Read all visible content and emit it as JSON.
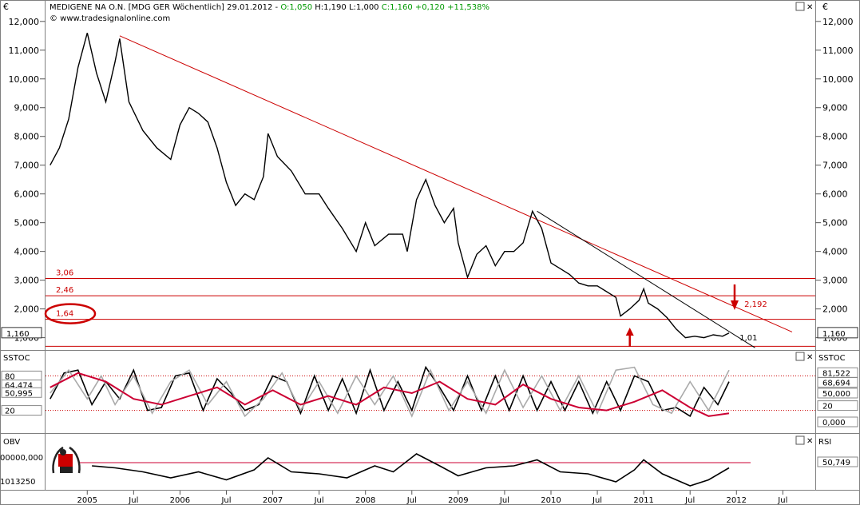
{
  "header": {
    "currency": "€",
    "instrument": "MEDIGENE NA O.N. [MDG GER  Wöchentlich] 29.01.2012 -",
    "ohlc": {
      "open": "O:1,050",
      "high": "H:1,190",
      "low": "L:1,000",
      "close": "C:1,160 +0,120 +11,538%"
    },
    "copyright": "© www.tradesignalonline.com",
    "window_controls": [
      "▢",
      "✕"
    ]
  },
  "chart_data": [
    {
      "type": "line",
      "panel": "price",
      "y_ticks": [
        "1,000",
        "2,000",
        "3,000",
        "4,000",
        "5,000",
        "6,000",
        "7,000",
        "8,000",
        "9,000",
        "10,000",
        "11,000",
        "12,000"
      ],
      "ylim": [
        0.6,
        12.3
      ],
      "x_ticks": [
        "2005",
        "Jul",
        "2006",
        "Jul",
        "2007",
        "Jul",
        "2008",
        "Jul",
        "2009",
        "Jul",
        "2010",
        "Jul",
        "2011",
        "Jul",
        "2012",
        "Jul"
      ],
      "last_price_label": "1,160",
      "series": [
        {
          "values": [
            [
              2004.6,
              7.0
            ],
            [
              2004.7,
              7.6
            ],
            [
              2004.8,
              8.6
            ],
            [
              2004.9,
              10.4
            ],
            [
              2005.0,
              11.6
            ],
            [
              2005.1,
              10.2
            ],
            [
              2005.2,
              9.2
            ],
            [
              2005.3,
              10.6
            ],
            [
              2005.35,
              11.4
            ],
            [
              2005.45,
              9.2
            ],
            [
              2005.6,
              8.2
            ],
            [
              2005.75,
              7.6
            ],
            [
              2005.9,
              7.2
            ],
            [
              2006.0,
              8.4
            ],
            [
              2006.1,
              9.0
            ],
            [
              2006.2,
              8.8
            ],
            [
              2006.3,
              8.5
            ],
            [
              2006.4,
              7.6
            ],
            [
              2006.5,
              6.4
            ],
            [
              2006.6,
              5.6
            ],
            [
              2006.7,
              6.0
            ],
            [
              2006.8,
              5.8
            ],
            [
              2006.9,
              6.6
            ],
            [
              2006.95,
              8.1
            ],
            [
              2007.05,
              7.3
            ],
            [
              2007.2,
              6.8
            ],
            [
              2007.35,
              6.0
            ],
            [
              2007.5,
              6.0
            ],
            [
              2007.6,
              5.5
            ],
            [
              2007.75,
              4.8
            ],
            [
              2007.9,
              4.0
            ],
            [
              2008.0,
              5.0
            ],
            [
              2008.1,
              4.2
            ],
            [
              2008.25,
              4.6
            ],
            [
              2008.4,
              4.6
            ],
            [
              2008.45,
              4.0
            ],
            [
              2008.55,
              5.8
            ],
            [
              2008.65,
              6.5
            ],
            [
              2008.75,
              5.6
            ],
            [
              2008.85,
              5.0
            ],
            [
              2008.95,
              5.5
            ],
            [
              2009.0,
              4.3
            ],
            [
              2009.1,
              3.1
            ],
            [
              2009.2,
              3.9
            ],
            [
              2009.3,
              4.2
            ],
            [
              2009.4,
              3.5
            ],
            [
              2009.5,
              4.0
            ],
            [
              2009.6,
              4.0
            ],
            [
              2009.7,
              4.3
            ],
            [
              2009.8,
              5.4
            ],
            [
              2009.9,
              4.8
            ],
            [
              2010.0,
              3.6
            ],
            [
              2010.1,
              3.4
            ],
            [
              2010.2,
              3.2
            ],
            [
              2010.3,
              2.9
            ],
            [
              2010.4,
              2.8
            ],
            [
              2010.5,
              2.8
            ],
            [
              2010.6,
              2.6
            ],
            [
              2010.7,
              2.4
            ],
            [
              2010.75,
              1.75
            ],
            [
              2010.85,
              2.0
            ],
            [
              2010.95,
              2.3
            ],
            [
              2011.0,
              2.7
            ],
            [
              2011.05,
              2.2
            ],
            [
              2011.15,
              2.0
            ],
            [
              2011.25,
              1.7
            ],
            [
              2011.35,
              1.3
            ],
            [
              2011.45,
              1.0
            ],
            [
              2011.55,
              1.05
            ],
            [
              2011.65,
              1.0
            ],
            [
              2011.75,
              1.1
            ],
            [
              2011.85,
              1.05
            ],
            [
              2011.92,
              1.16
            ]
          ]
        }
      ],
      "trendlines": [
        {
          "color": "#cc0000",
          "from": [
            2005.35,
            11.5
          ],
          "to": [
            2012.6,
            1.2
          ]
        },
        {
          "color": "#000000",
          "from": [
            2009.85,
            5.4
          ],
          "to": [
            2012.2,
            0.65
          ]
        }
      ],
      "horizontal_levels": [
        {
          "value": 3.06,
          "label": "3,06"
        },
        {
          "value": 2.46,
          "label": "2,46"
        },
        {
          "value": 1.64,
          "label": "1,64"
        },
        {
          "value": 0.7,
          "label": ""
        }
      ],
      "annotations": [
        {
          "text": "2,192",
          "at": [
            2012.05,
            2.19
          ]
        },
        {
          "text": "1,01",
          "at": [
            2012.0,
            1.01
          ]
        }
      ],
      "arrows": [
        {
          "direction": "up",
          "x": 2010.85
        },
        {
          "direction": "down",
          "x": 2011.98
        }
      ]
    },
    {
      "type": "line",
      "panel": "sstoc",
      "title": "SSTOC",
      "ylim": [
        0,
        100
      ],
      "left_labels": [
        "80",
        "64,474",
        "50,995",
        "20"
      ],
      "right_labels": [
        "81,522",
        "68,694",
        "50,000",
        "20",
        "0,000"
      ],
      "levels": [
        80,
        20
      ],
      "series": [
        {
          "color": "#000000",
          "values": [
            [
              2004.6,
              40
            ],
            [
              2004.75,
              85
            ],
            [
              2004.9,
              90
            ],
            [
              2005.05,
              30
            ],
            [
              2005.2,
              70
            ],
            [
              2005.35,
              40
            ],
            [
              2005.5,
              90
            ],
            [
              2005.65,
              20
            ],
            [
              2005.8,
              25
            ],
            [
              2005.95,
              80
            ],
            [
              2006.1,
              85
            ],
            [
              2006.25,
              20
            ],
            [
              2006.4,
              75
            ],
            [
              2006.55,
              50
            ],
            [
              2006.7,
              20
            ],
            [
              2006.85,
              30
            ],
            [
              2007.0,
              80
            ],
            [
              2007.15,
              70
            ],
            [
              2007.3,
              15
            ],
            [
              2007.45,
              80
            ],
            [
              2007.6,
              20
            ],
            [
              2007.75,
              75
            ],
            [
              2007.9,
              15
            ],
            [
              2008.05,
              90
            ],
            [
              2008.2,
              20
            ],
            [
              2008.35,
              70
            ],
            [
              2008.5,
              20
            ],
            [
              2008.65,
              95
            ],
            [
              2008.8,
              60
            ],
            [
              2008.95,
              20
            ],
            [
              2009.1,
              80
            ],
            [
              2009.25,
              20
            ],
            [
              2009.4,
              80
            ],
            [
              2009.55,
              20
            ],
            [
              2009.7,
              80
            ],
            [
              2009.85,
              20
            ],
            [
              2010.0,
              70
            ],
            [
              2010.15,
              20
            ],
            [
              2010.3,
              70
            ],
            [
              2010.45,
              15
            ],
            [
              2010.6,
              70
            ],
            [
              2010.75,
              20
            ],
            [
              2010.9,
              80
            ],
            [
              2011.05,
              70
            ],
            [
              2011.2,
              20
            ],
            [
              2011.35,
              25
            ],
            [
              2011.5,
              10
            ],
            [
              2011.65,
              60
            ],
            [
              2011.8,
              30
            ],
            [
              2011.92,
              70
            ]
          ]
        },
        {
          "color": "#aaaaaa",
          "values": [
            [
              2004.6,
              50
            ],
            [
              2004.8,
              90
            ],
            [
              2005.0,
              40
            ],
            [
              2005.15,
              80
            ],
            [
              2005.3,
              30
            ],
            [
              2005.5,
              80
            ],
            [
              2005.7,
              15
            ],
            [
              2005.9,
              70
            ],
            [
              2006.1,
              90
            ],
            [
              2006.3,
              30
            ],
            [
              2006.5,
              70
            ],
            [
              2006.7,
              10
            ],
            [
              2006.9,
              40
            ],
            [
              2007.1,
              85
            ],
            [
              2007.3,
              20
            ],
            [
              2007.5,
              70
            ],
            [
              2007.7,
              15
            ],
            [
              2007.9,
              80
            ],
            [
              2008.1,
              30
            ],
            [
              2008.3,
              80
            ],
            [
              2008.5,
              10
            ],
            [
              2008.7,
              90
            ],
            [
              2008.9,
              20
            ],
            [
              2009.1,
              70
            ],
            [
              2009.3,
              15
            ],
            [
              2009.5,
              90
            ],
            [
              2009.7,
              25
            ],
            [
              2009.9,
              80
            ],
            [
              2010.1,
              20
            ],
            [
              2010.3,
              80
            ],
            [
              2010.5,
              15
            ],
            [
              2010.7,
              90
            ],
            [
              2010.9,
              95
            ],
            [
              2011.1,
              30
            ],
            [
              2011.3,
              15
            ],
            [
              2011.5,
              70
            ],
            [
              2011.7,
              20
            ],
            [
              2011.92,
              90
            ]
          ]
        },
        {
          "color": "#cc0033",
          "values": [
            [
              2004.6,
              60
            ],
            [
              2004.9,
              85
            ],
            [
              2005.2,
              70
            ],
            [
              2005.5,
              40
            ],
            [
              2005.8,
              30
            ],
            [
              2006.1,
              45
            ],
            [
              2006.4,
              60
            ],
            [
              2006.7,
              30
            ],
            [
              2007.0,
              55
            ],
            [
              2007.3,
              30
            ],
            [
              2007.6,
              45
            ],
            [
              2007.9,
              30
            ],
            [
              2008.2,
              60
            ],
            [
              2008.5,
              50
            ],
            [
              2008.8,
              70
            ],
            [
              2009.1,
              40
            ],
            [
              2009.4,
              30
            ],
            [
              2009.7,
              65
            ],
            [
              2010.0,
              40
            ],
            [
              2010.3,
              25
            ],
            [
              2010.6,
              20
            ],
            [
              2010.9,
              35
            ],
            [
              2011.2,
              55
            ],
            [
              2011.5,
              25
            ],
            [
              2011.7,
              10
            ],
            [
              2011.92,
              15
            ]
          ]
        }
      ]
    },
    {
      "type": "line",
      "panel": "obv",
      "title": "OBV",
      "left_labels": [
        "00000,000",
        "1013250"
      ],
      "right_title": "RSI",
      "right_labels": [
        "50,749"
      ],
      "level": 0.5,
      "series": [
        {
          "color": "#000000",
          "values": [
            [
              2005.05,
              0.5
            ],
            [
              2005.3,
              0.45
            ],
            [
              2005.6,
              0.35
            ],
            [
              2005.9,
              0.2
            ],
            [
              2006.2,
              0.35
            ],
            [
              2006.5,
              0.15
            ],
            [
              2006.8,
              0.4
            ],
            [
              2006.95,
              0.7
            ],
            [
              2007.2,
              0.35
            ],
            [
              2007.5,
              0.3
            ],
            [
              2007.8,
              0.2
            ],
            [
              2008.1,
              0.5
            ],
            [
              2008.3,
              0.35
            ],
            [
              2008.55,
              0.8
            ],
            [
              2008.8,
              0.5
            ],
            [
              2009.0,
              0.25
            ],
            [
              2009.3,
              0.45
            ],
            [
              2009.6,
              0.5
            ],
            [
              2009.85,
              0.65
            ],
            [
              2010.1,
              0.35
            ],
            [
              2010.4,
              0.3
            ],
            [
              2010.7,
              0.1
            ],
            [
              2010.9,
              0.4
            ],
            [
              2011.0,
              0.65
            ],
            [
              2011.2,
              0.3
            ],
            [
              2011.5,
              0.0
            ],
            [
              2011.7,
              0.15
            ],
            [
              2011.92,
              0.45
            ]
          ]
        }
      ]
    }
  ]
}
